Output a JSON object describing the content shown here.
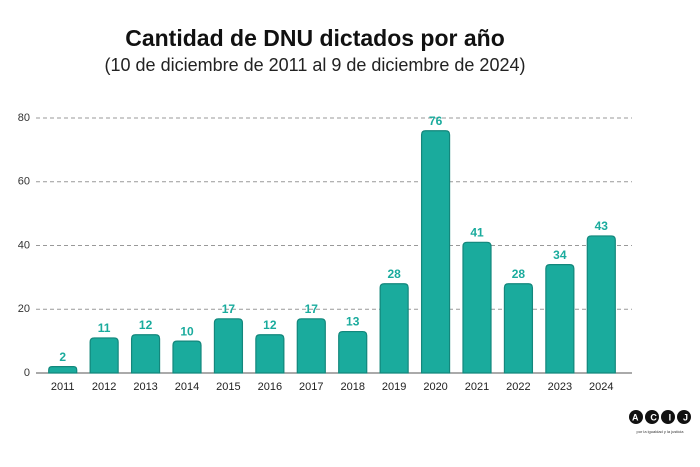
{
  "chart_data": {
    "type": "bar",
    "title": "Cantidad de DNU dictados por año",
    "subtitle": "(10 de diciembre de 2011 al 9 de diciembre de 2024)",
    "categories": [
      "2011",
      "2012",
      "2013",
      "2014",
      "2015",
      "2016",
      "2017",
      "2018",
      "2019",
      "2020",
      "2021",
      "2022",
      "2023",
      "2024"
    ],
    "values": [
      2,
      11,
      12,
      10,
      17,
      12,
      17,
      13,
      28,
      76,
      41,
      28,
      34,
      43
    ],
    "color": "#1aab9d",
    "ylim": [
      0,
      80
    ],
    "yticks": [
      0,
      20,
      40,
      60,
      80
    ],
    "grid": true,
    "logo": "ACIJ",
    "logo_tagline": "por la igualdad y la justicia"
  }
}
